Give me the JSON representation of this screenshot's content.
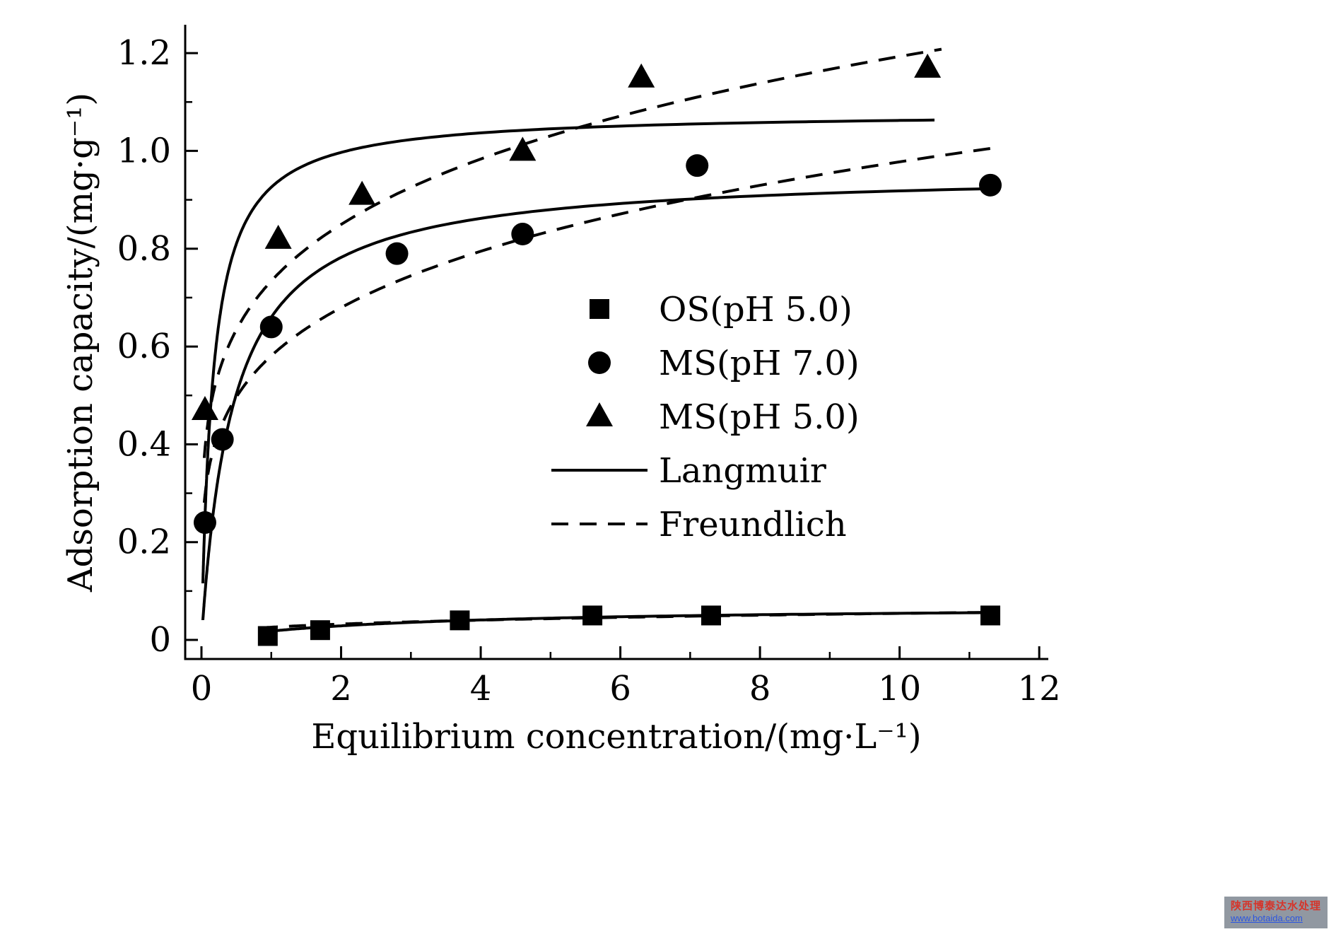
{
  "chart_data": {
    "type": "scatter",
    "title": "",
    "xlabel": "Equilibrium concentration/(mg·L⁻¹)",
    "ylabel": "Adsorption capacity/(mg·g⁻¹)",
    "xlim": [
      -0.233,
      12.13
    ],
    "ylim": [
      -0.039,
      1.258
    ],
    "xticks": [
      0,
      2,
      4,
      6,
      8,
      10,
      12
    ],
    "xtick_labels": [
      "0",
      "2",
      "4",
      "6",
      "8",
      "10",
      "12"
    ],
    "xticks_minor": [
      1,
      3,
      5,
      7,
      9,
      11
    ],
    "yticks": [
      0,
      0.2,
      0.4,
      0.6,
      0.8,
      1.0,
      1.2
    ],
    "ytick_labels": [
      "0",
      "0.2",
      "0.4",
      "0.6",
      "0.8",
      "1.0",
      "1.2"
    ],
    "yticks_minor": [
      0.1,
      0.3,
      0.5,
      0.7,
      0.9,
      1.1
    ],
    "grid": false,
    "series": [
      {
        "name": "OS(pH 5.0)",
        "marker": "square",
        "points": [
          [
            0.95,
            0.008
          ],
          [
            1.7,
            0.02
          ],
          [
            3.7,
            0.04
          ],
          [
            5.6,
            0.05
          ],
          [
            7.3,
            0.05
          ],
          [
            11.3,
            0.05
          ]
        ]
      },
      {
        "name": "MS(pH 7.0)",
        "marker": "circle",
        "points": [
          [
            0.05,
            0.24
          ],
          [
            0.3,
            0.41
          ],
          [
            1.0,
            0.64
          ],
          [
            2.8,
            0.79
          ],
          [
            4.6,
            0.83
          ],
          [
            7.1,
            0.97
          ],
          [
            11.3,
            0.93
          ]
        ]
      },
      {
        "name": "MS(pH 5.0)",
        "marker": "triangle",
        "points": [
          [
            0.05,
            0.47
          ],
          [
            1.1,
            0.82
          ],
          [
            2.3,
            0.91
          ],
          [
            4.6,
            1.0
          ],
          [
            6.3,
            1.15
          ],
          [
            10.4,
            1.17
          ]
        ]
      }
    ],
    "fits": [
      {
        "model": "Langmuir",
        "series": "MS(pH 5.0)",
        "style": "solid",
        "params": {
          "qm": 1.08,
          "kl": 6.0
        },
        "range": [
          0.02,
          10.5
        ]
      },
      {
        "model": "Langmuir",
        "series": "MS(pH 7.0)",
        "style": "solid",
        "params": {
          "qm": 0.96,
          "kl": 2.2
        },
        "range": [
          0.02,
          11.4
        ]
      },
      {
        "model": "Langmuir",
        "series": "OS(pH 5.0)",
        "style": "solid",
        "params": {
          "qm": 0.07,
          "kl": 0.35
        },
        "range": [
          0.85,
          11.4
        ]
      },
      {
        "model": "Freundlich",
        "series": "MS(pH 5.0)",
        "style": "dashed",
        "params": {
          "kf": 0.734,
          "one_over_n": 0.211
        },
        "range": [
          0.04,
          10.6
        ]
      },
      {
        "model": "Freundlich",
        "series": "MS(pH 7.0)",
        "style": "dashed",
        "params": {
          "kf": 0.581,
          "one_over_n": 0.226
        },
        "range": [
          0.04,
          11.4
        ]
      },
      {
        "model": "Freundlich",
        "series": "OS(pH 5.0)",
        "style": "dashed",
        "params": {
          "kf": 0.026,
          "one_over_n": 0.32
        },
        "range": [
          0.85,
          11.4
        ]
      }
    ],
    "legend": {
      "position": "center-right",
      "items": [
        {
          "type": "marker",
          "marker": "square",
          "label": "OS(pH 5.0)"
        },
        {
          "type": "marker",
          "marker": "circle",
          "label": "MS(pH 7.0)"
        },
        {
          "type": "marker",
          "marker": "triangle",
          "label": "MS(pH 5.0)"
        },
        {
          "type": "line",
          "style": "solid",
          "label": "Langmuir"
        },
        {
          "type": "line",
          "style": "dashed",
          "label": "Freundlich"
        }
      ]
    },
    "line_color": "#000000"
  },
  "watermark": {
    "line1": "陕西博泰达水处理",
    "line2": "www.botaida.com"
  }
}
